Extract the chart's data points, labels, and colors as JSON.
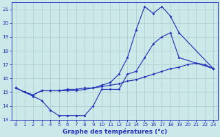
{
  "title": "Graphe des températures (°c)",
  "bg_color": "#cce8e8",
  "grid_color": "#aacccc",
  "line_color": "#2233bb",
  "hours": [
    0,
    1,
    2,
    3,
    4,
    5,
    6,
    7,
    8,
    9,
    10,
    11,
    12,
    13,
    14,
    15,
    16,
    17,
    18,
    19,
    20,
    21,
    22,
    23
  ],
  "curve_top": [
    15.3,
    15.0,
    14.8,
    15.1,
    15.1,
    15.1,
    15.1,
    15.1,
    15.2,
    15.3,
    15.5,
    15.7,
    16.3,
    17.5,
    19.5,
    21.2,
    20.7,
    21.2,
    20.5,
    19.3,
    null,
    null,
    null,
    16.7
  ],
  "curve_mid": [
    15.3,
    15.0,
    14.8,
    15.1,
    15.1,
    15.1,
    15.2,
    15.2,
    15.3,
    15.3,
    15.4,
    15.5,
    15.6,
    15.8,
    15.9,
    16.1,
    16.3,
    16.5,
    16.7,
    16.8,
    17.0,
    17.1,
    17.0,
    16.7
  ],
  "curve_bot": [
    15.3,
    15.0,
    14.7,
    14.4,
    13.7,
    13.3,
    13.3,
    13.3,
    13.3,
    14.0,
    15.2,
    15.2,
    15.2,
    16.3,
    16.5,
    17.5,
    18.5,
    19.0,
    19.3,
    17.5,
    null,
    null,
    null,
    16.7
  ],
  "ylim": [
    13.0,
    21.5
  ],
  "yticks": [
    13,
    14,
    15,
    16,
    17,
    18,
    19,
    20,
    21
  ],
  "xticks": [
    0,
    1,
    2,
    3,
    4,
    5,
    6,
    7,
    8,
    9,
    10,
    11,
    12,
    13,
    14,
    15,
    16,
    17,
    18,
    19,
    20,
    21,
    22,
    23
  ],
  "xlim": [
    -0.5,
    23.5
  ],
  "xlabel_fontsize": 6.5,
  "tick_fontsize": 5.2,
  "marker_size": 2.0,
  "line_width": 0.85
}
